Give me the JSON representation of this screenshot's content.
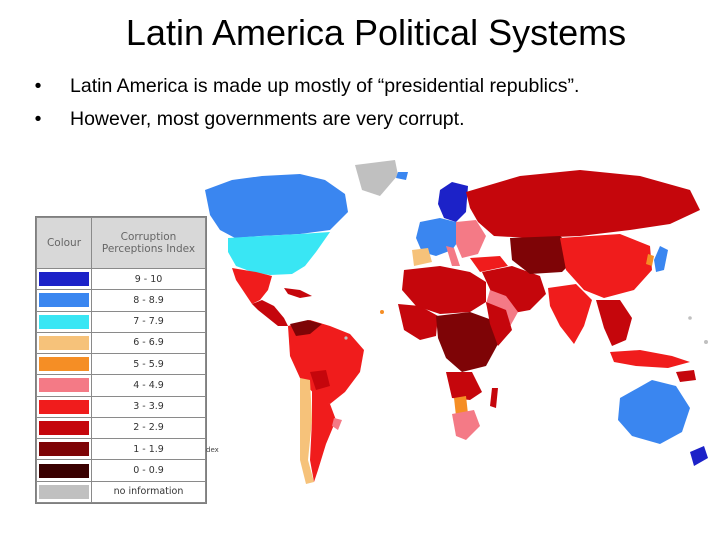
{
  "title": "Latin America Political Systems",
  "bullets": [
    "Latin America is made up mostly of “presidential republics”.",
    "However, most governments are very corrupt."
  ],
  "bullet_glyph": "•",
  "legend": {
    "header_colour": "Colour",
    "header_index_line1": "Corruption",
    "header_index_line2": "Perceptions Index",
    "rows": [
      {
        "color": "#1c22c8",
        "label": "9 - 10"
      },
      {
        "color": "#3a86f0",
        "label": "8 - 8.9"
      },
      {
        "color": "#39e6f4",
        "label": "7 - 7.9"
      },
      {
        "color": "#f6c27a",
        "label": "6 - 6.9"
      },
      {
        "color": "#f58e25",
        "label": "5 - 5.9"
      },
      {
        "color": "#f47a86",
        "label": "4 - 4.9"
      },
      {
        "color": "#f01c1c",
        "label": "3 - 3.9"
      },
      {
        "color": "#c5060c",
        "label": "2 - 2.9"
      },
      {
        "color": "#7e0406",
        "label": "1 - 1.9"
      },
      {
        "color": "#3a0000",
        "label": "0 - 0.9"
      },
      {
        "color": "#c0c0c0",
        "label": "no information"
      }
    ]
  },
  "cut_label": "dex"
}
